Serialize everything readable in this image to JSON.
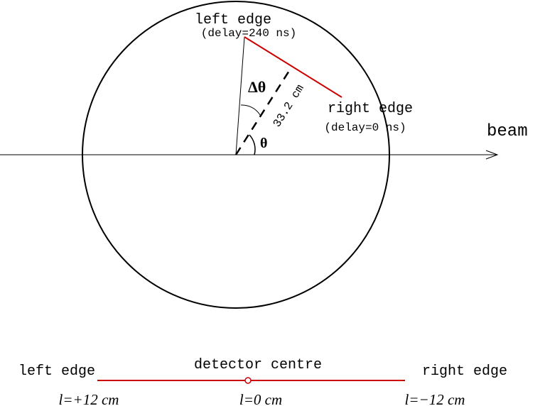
{
  "top": {
    "left_edge": "left edge",
    "left_delay": "(delay=240 ns)",
    "right_edge": "right edge",
    "right_delay": "(delay=0 ns)",
    "beam": "beam",
    "delta_theta": "Δθ",
    "theta": "θ",
    "distance": "33.2 cm"
  },
  "bottom": {
    "left_edge": "left edge",
    "centre": "detector centre",
    "right_edge": "right edge",
    "left_l": "l=+12 cm",
    "centre_l": "l=0 cm",
    "right_l": "l=−12 cm"
  }
}
